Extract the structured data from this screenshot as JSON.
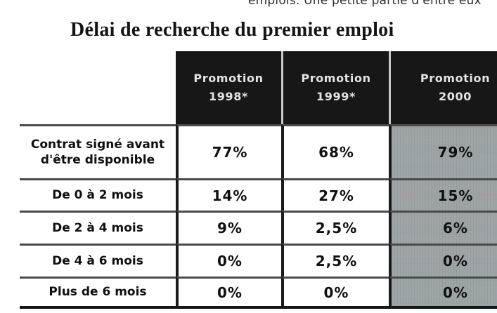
{
  "page": {
    "top_text": "emplois. Une petite partie d'entre eux",
    "title": "Délai de recherche du premier emploi"
  },
  "table": {
    "col_labels": [
      [
        "Promotion",
        "1998*"
      ],
      [
        "Promotion",
        "1999*"
      ],
      [
        "Promotion",
        "2000"
      ]
    ],
    "rows": [
      {
        "label": "Contrat signé avant d'être disponible",
        "values": [
          "77%",
          "68%",
          "79%"
        ]
      },
      {
        "label": "De 0 à 2 mois",
        "values": [
          "14%",
          "27%",
          "15%"
        ]
      },
      {
        "label": "De 2 à 4 mois",
        "values": [
          "9%",
          "2,5%",
          "6%"
        ]
      },
      {
        "label": "De 4 à 6 mois",
        "values": [
          "0%",
          "2,5%",
          "0%"
        ]
      },
      {
        "label": "Plus de 6 mois",
        "values": [
          "0%",
          "0%",
          "0%"
        ]
      }
    ],
    "colors": {
      "header_bg": "#171717",
      "header_text": "#e3e3e3",
      "header_separator": "#c8c8c8",
      "grid_line_heavy": "#161616",
      "grid_line_row": "#4a4a4a",
      "highlight_column_bg": "#a2a5a3",
      "text": "#101010"
    }
  },
  "chart_data": {
    "type": "table",
    "title": "Délai de recherche du premier emploi",
    "columns": [
      "",
      "Promotion 1998*",
      "Promotion 1999*",
      "Promotion 2000"
    ],
    "rows": [
      [
        "Contrat signé avant d'être disponible",
        "77%",
        "68%",
        "79%"
      ],
      [
        "De 0 à 2 mois",
        "14%",
        "27%",
        "15%"
      ],
      [
        "De 2 à 4 mois",
        "9%",
        "2,5%",
        "6%"
      ],
      [
        "De 4 à 6 mois",
        "0%",
        "2,5%",
        "0%"
      ],
      [
        "Plus de 6 mois",
        "0%",
        "0%",
        "0%"
      ]
    ]
  }
}
